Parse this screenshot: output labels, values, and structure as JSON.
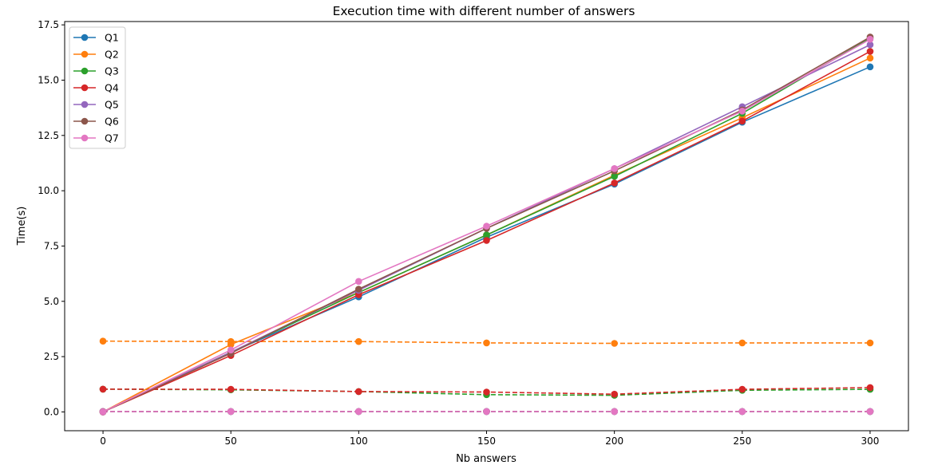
{
  "chart_data": {
    "type": "line",
    "title": "Execution time with different number of answers",
    "xlabel": "Nb answers",
    "ylabel": "Time(s)",
    "x": [
      0,
      50,
      100,
      150,
      200,
      250,
      300
    ],
    "xlim": [
      -15,
      315
    ],
    "ylim": [
      -0.85,
      17.65
    ],
    "xticks": [
      0,
      50,
      100,
      150,
      200,
      250,
      300
    ],
    "yticks": [
      0.0,
      2.5,
      5.0,
      7.5,
      10.0,
      12.5,
      15.0,
      17.5
    ],
    "ytick_labels": [
      "0.0",
      "2.5",
      "5.0",
      "7.5",
      "10.0",
      "12.5",
      "15.0",
      "17.5"
    ],
    "grid": false,
    "legend_position": "upper-left",
    "series": [
      {
        "name": "Q1",
        "color": "#1f77b4",
        "style": "solid",
        "marker": "circle",
        "values": [
          0.0,
          2.7,
          5.2,
          7.9,
          10.3,
          13.1,
          15.6
        ]
      },
      {
        "name": "Q2",
        "color": "#ff7f0e",
        "style": "solid",
        "marker": "circle",
        "values": [
          0.0,
          3.05,
          5.4,
          8.0,
          10.7,
          13.3,
          16.0
        ]
      },
      {
        "name": "Q3",
        "color": "#2ca02c",
        "style": "solid",
        "marker": "circle",
        "values": [
          0.0,
          2.7,
          5.4,
          8.0,
          10.65,
          13.5,
          16.9
        ]
      },
      {
        "name": "Q4",
        "color": "#d62728",
        "style": "solid",
        "marker": "circle",
        "values": [
          0.0,
          2.55,
          5.3,
          7.75,
          10.35,
          13.15,
          16.3
        ]
      },
      {
        "name": "Q5",
        "color": "#9467bd",
        "style": "solid",
        "marker": "circle",
        "values": [
          0.0,
          2.7,
          5.5,
          8.3,
          11.0,
          13.8,
          16.6
        ]
      },
      {
        "name": "Q6",
        "color": "#8c564b",
        "style": "solid",
        "marker": "circle",
        "values": [
          0.0,
          2.65,
          5.55,
          8.3,
          10.9,
          13.65,
          16.95
        ]
      },
      {
        "name": "Q7",
        "color": "#e377c2",
        "style": "solid",
        "marker": "circle",
        "values": [
          0.0,
          2.8,
          5.9,
          8.4,
          11.0,
          13.6,
          16.85
        ]
      },
      {
        "color": "#1f77b4",
        "style": "dashed",
        "marker": "circle",
        "values": [
          0.02,
          0.02,
          0.02,
          0.02,
          0.02,
          0.02,
          0.02
        ]
      },
      {
        "color": "#ff7f0e",
        "style": "dashed",
        "marker": "circle",
        "values": [
          3.2,
          3.18,
          3.18,
          3.12,
          3.1,
          3.12,
          3.12
        ]
      },
      {
        "color": "#2ca02c",
        "style": "dashed",
        "marker": "circle",
        "values": [
          1.03,
          1.0,
          0.92,
          0.78,
          0.75,
          0.98,
          1.02
        ]
      },
      {
        "color": "#d62728",
        "style": "dashed",
        "marker": "circle",
        "values": [
          1.03,
          1.02,
          0.92,
          0.9,
          0.8,
          1.02,
          1.1
        ]
      },
      {
        "color": "#9467bd",
        "style": "dashed",
        "marker": "circle",
        "values": [
          0.02,
          0.02,
          0.02,
          0.02,
          0.02,
          0.02,
          0.02
        ]
      },
      {
        "color": "#8c564b",
        "style": "dashed",
        "marker": "circle",
        "values": [
          0.02,
          0.02,
          0.02,
          0.02,
          0.02,
          0.02,
          0.02
        ]
      },
      {
        "color": "#e377c2",
        "style": "dashed",
        "marker": "circle",
        "values": [
          0.02,
          0.02,
          0.02,
          0.02,
          0.02,
          0.02,
          0.02
        ]
      }
    ]
  }
}
